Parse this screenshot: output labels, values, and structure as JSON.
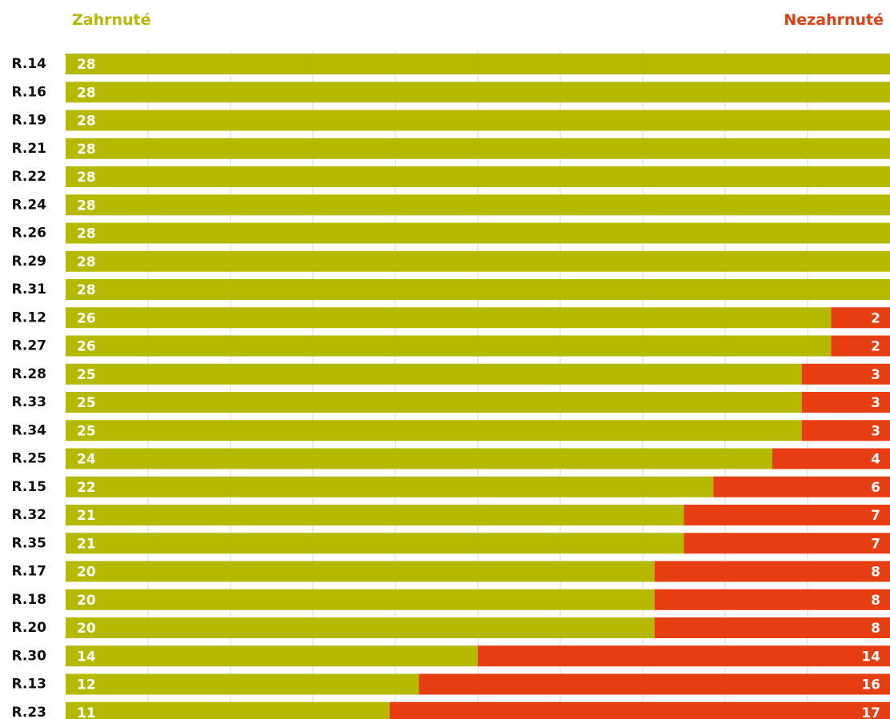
{
  "legend": {
    "included_label": "Zahrnuté",
    "excluded_label": "Nezahrnuté"
  },
  "colors": {
    "included": "#b5ba00",
    "excluded": "#e63d12",
    "grid": "#d9d9d9"
  },
  "chart_data": {
    "type": "bar",
    "orientation": "horizontal",
    "stacked": true,
    "categories": [
      "R.14",
      "R.16",
      "R.19",
      "R.21",
      "R.22",
      "R.24",
      "R.26",
      "R.29",
      "R.31",
      "R.12",
      "R.27",
      "R.28",
      "R.33",
      "R.34",
      "R.25",
      "R.15",
      "R.32",
      "R.35",
      "R.17",
      "R.18",
      "R.20",
      "R.30",
      "R.13",
      "R.23"
    ],
    "series": [
      {
        "name": "Zahrnuté",
        "values": [
          28,
          28,
          28,
          28,
          28,
          28,
          28,
          28,
          28,
          26,
          26,
          25,
          25,
          25,
          24,
          22,
          21,
          21,
          20,
          20,
          20,
          14,
          12,
          11
        ]
      },
      {
        "name": "Nezahrnuté",
        "values": [
          0,
          0,
          0,
          0,
          0,
          0,
          0,
          0,
          0,
          2,
          2,
          3,
          3,
          3,
          4,
          6,
          7,
          7,
          8,
          8,
          8,
          14,
          16,
          17
        ]
      }
    ],
    "xlim": [
      0,
      28
    ],
    "grid": true,
    "legend_position": "top"
  }
}
